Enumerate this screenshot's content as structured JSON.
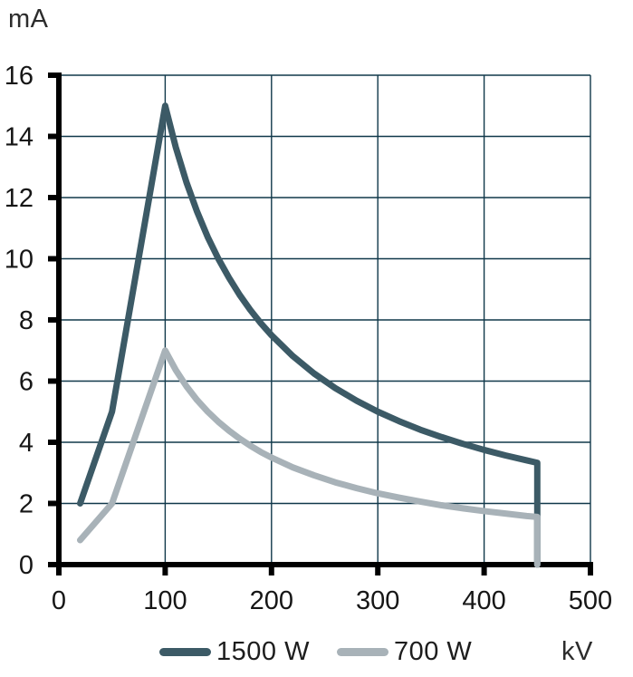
{
  "chart_data": {
    "type": "line",
    "title": "",
    "xlabel": "kV",
    "ylabel": "mA",
    "xlim": [
      0,
      500
    ],
    "ylim": [
      0,
      16
    ],
    "x_ticks": [
      0,
      100,
      200,
      300,
      400,
      500
    ],
    "y_ticks": [
      0,
      2,
      4,
      6,
      8,
      10,
      12,
      14,
      16
    ],
    "grid": true,
    "legend_position": "bottom-center",
    "series": [
      {
        "name": "1500 W",
        "color": "#3c5a66",
        "points": [
          [
            20,
            2
          ],
          [
            50,
            5
          ],
          [
            100,
            15
          ],
          [
            110,
            13.64
          ],
          [
            120,
            12.5
          ],
          [
            130,
            11.54
          ],
          [
            140,
            10.71
          ],
          [
            150,
            10
          ],
          [
            160,
            9.38
          ],
          [
            170,
            8.82
          ],
          [
            180,
            8.33
          ],
          [
            190,
            7.89
          ],
          [
            200,
            7.5
          ],
          [
            220,
            6.82
          ],
          [
            240,
            6.25
          ],
          [
            260,
            5.77
          ],
          [
            280,
            5.36
          ],
          [
            300,
            5
          ],
          [
            320,
            4.69
          ],
          [
            340,
            4.41
          ],
          [
            360,
            4.17
          ],
          [
            380,
            3.95
          ],
          [
            400,
            3.75
          ],
          [
            420,
            3.57
          ],
          [
            440,
            3.41
          ],
          [
            450,
            3.33
          ],
          [
            450,
            0
          ]
        ]
      },
      {
        "name": "700 W",
        "color": "#a8b2b8",
        "points": [
          [
            20,
            0.8
          ],
          [
            50,
            2
          ],
          [
            100,
            7
          ],
          [
            110,
            6.36
          ],
          [
            120,
            5.83
          ],
          [
            130,
            5.38
          ],
          [
            140,
            5
          ],
          [
            150,
            4.67
          ],
          [
            160,
            4.38
          ],
          [
            170,
            4.12
          ],
          [
            180,
            3.89
          ],
          [
            190,
            3.68
          ],
          [
            200,
            3.5
          ],
          [
            220,
            3.18
          ],
          [
            240,
            2.92
          ],
          [
            260,
            2.69
          ],
          [
            280,
            2.5
          ],
          [
            300,
            2.33
          ],
          [
            320,
            2.19
          ],
          [
            340,
            2.06
          ],
          [
            360,
            1.94
          ],
          [
            380,
            1.84
          ],
          [
            400,
            1.75
          ],
          [
            420,
            1.67
          ],
          [
            440,
            1.59
          ],
          [
            450,
            1.56
          ],
          [
            450,
            0
          ]
        ]
      }
    ]
  },
  "style": {
    "background": "#ffffff",
    "grid_color": "#10384a",
    "axis_color": "#000000",
    "tick_label_color": "#161616",
    "unit_label_color": "#2c2c2c"
  }
}
